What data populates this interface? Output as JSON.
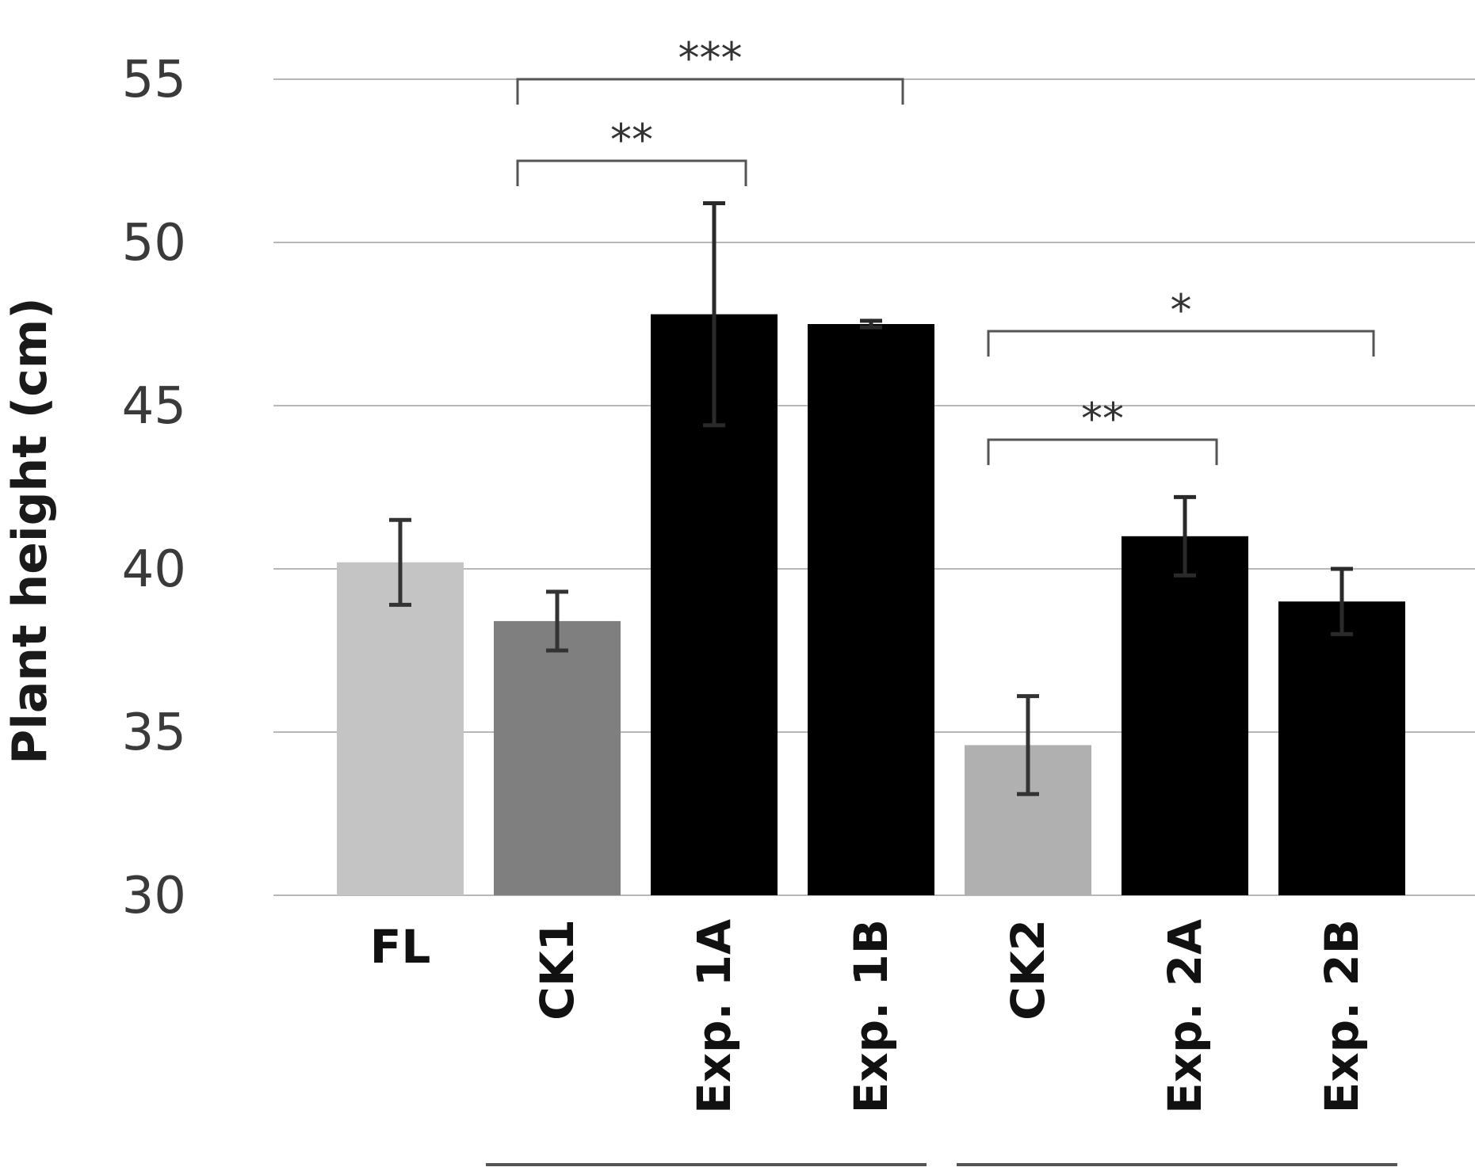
{
  "chart_data": {
    "type": "bar",
    "ylabel": "Plant height (cm)",
    "ylim": [
      30,
      55
    ],
    "yticks": [
      30,
      35,
      40,
      45,
      50,
      55
    ],
    "grid": true,
    "categories": [
      "FL",
      "CK1",
      "Exp. 1A",
      "Exp. 1B",
      "CK2",
      "Exp. 2A",
      "Exp. 2B"
    ],
    "values": [
      40.2,
      38.4,
      47.8,
      47.5,
      34.6,
      41.0,
      39.0
    ],
    "errors": [
      1.3,
      0.9,
      3.4,
      0.1,
      1.5,
      1.2,
      1.0
    ],
    "bar_colors": [
      "#c4c4c4",
      "#7f7f7f",
      "#000000",
      "#000000",
      "#b0b0b0",
      "#000000",
      "#000000"
    ],
    "group_underlines": [
      {
        "from": "CK1",
        "to": "Exp. 1B"
      },
      {
        "from": "CK2",
        "to": "Exp. 2B"
      }
    ],
    "significance": [
      {
        "from": "CK1",
        "to": "Exp. 1B",
        "label": "***"
      },
      {
        "from": "CK1",
        "to": "Exp. 1A",
        "label": "**"
      },
      {
        "from": "CK2",
        "to": "Exp. 2B",
        "label": "*"
      },
      {
        "from": "CK2",
        "to": "Exp. 2A",
        "label": "**"
      }
    ]
  }
}
